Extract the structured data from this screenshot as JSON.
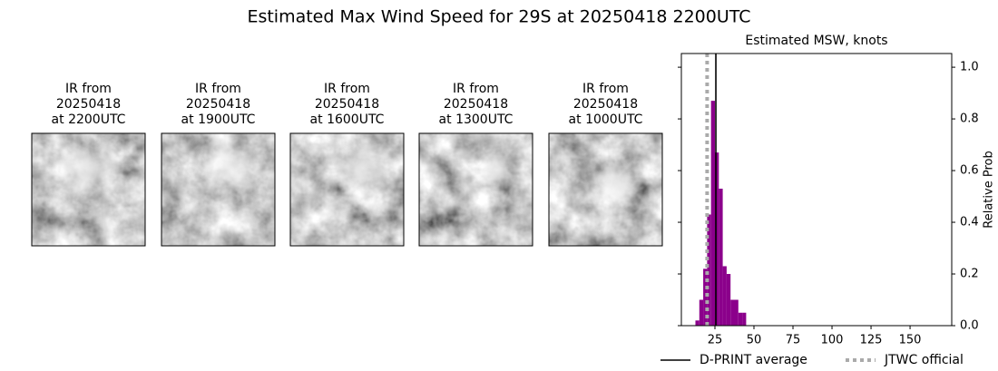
{
  "title": "Estimated Max Wind Speed for 29S at 20250418 2200UTC",
  "panels": [
    {
      "title_lines": [
        "IR from",
        "20250418",
        "at 2200UTC"
      ]
    },
    {
      "title_lines": [
        "IR from",
        "20250418",
        "at 1900UTC"
      ]
    },
    {
      "title_lines": [
        "IR from",
        "20250418",
        "at 1600UTC"
      ]
    },
    {
      "title_lines": [
        "IR from",
        "20250418",
        "at 1300UTC"
      ]
    },
    {
      "title_lines": [
        "IR from",
        "20250418",
        "at 1000UTC"
      ]
    }
  ],
  "chart_data": {
    "type": "histogram",
    "title": "Estimated MSW, knots",
    "y_label": "Relative Prob",
    "bins": [
      12.5,
      15,
      17.5,
      20,
      22.5,
      25,
      27.5,
      30,
      32.5,
      35,
      37.5,
      40,
      42.5,
      45
    ],
    "values": [
      0.02,
      0.1,
      0.22,
      0.43,
      0.87,
      0.67,
      0.53,
      0.23,
      0.2,
      0.1,
      0.1,
      0.05,
      0.05
    ],
    "color": "#8b008b",
    "lines": [
      {
        "name": "D-PRINT average",
        "value": 25.6,
        "color": "#000000",
        "style": "solid"
      },
      {
        "name": "JTWC official",
        "value": 20,
        "color": "#aaaaaa",
        "style": "dotted"
      }
    ],
    "xlim": [
      3.5,
      176.7
    ],
    "ylim": [
      0,
      1.053
    ],
    "xticks": [
      25,
      50,
      75,
      100,
      125,
      150
    ],
    "yticks": [
      {
        "value": 0,
        "label": "0.0"
      },
      {
        "value": 0.2,
        "label": "0.2"
      },
      {
        "value": 0.4,
        "label": "0.4"
      },
      {
        "value": 0.6,
        "label": "0.6"
      },
      {
        "value": 0.8,
        "label": "0.8"
      },
      {
        "value": 1.0,
        "label": "1.0"
      }
    ]
  }
}
